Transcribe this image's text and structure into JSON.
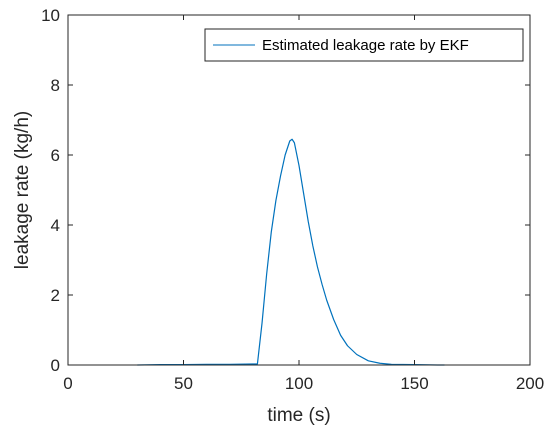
{
  "chart_data": {
    "type": "line",
    "xlabel": "time (s)",
    "ylabel": "leakage rate (kg/h)",
    "xlim": [
      0,
      200
    ],
    "ylim": [
      0,
      10
    ],
    "xticks": [
      "0",
      "50",
      "100",
      "150",
      "200"
    ],
    "yticks": [
      "0",
      "2",
      "4",
      "6",
      "8",
      "10"
    ],
    "grid": false,
    "legend_position": "top-right",
    "colors": {
      "series": "#0072BD",
      "axes": "#262626"
    },
    "series": [
      {
        "name": "Estimated leakage rate by EKF",
        "x": [
          30,
          40,
          50,
          60,
          70,
          80,
          82,
          84,
          86,
          88,
          90,
          92,
          94,
          96,
          97,
          98,
          100,
          102,
          104,
          106,
          108,
          110,
          112,
          115,
          118,
          121,
          125,
          130,
          135,
          140,
          150,
          160,
          163
        ],
        "y": [
          0,
          0.01,
          0.01,
          0.02,
          0.02,
          0.03,
          0.03,
          1.2,
          2.6,
          3.8,
          4.7,
          5.4,
          6.0,
          6.4,
          6.45,
          6.35,
          5.7,
          4.9,
          4.1,
          3.4,
          2.8,
          2.3,
          1.85,
          1.3,
          0.85,
          0.55,
          0.3,
          0.12,
          0.05,
          0.02,
          0.01,
          0.0,
          0.0
        ]
      }
    ]
  }
}
